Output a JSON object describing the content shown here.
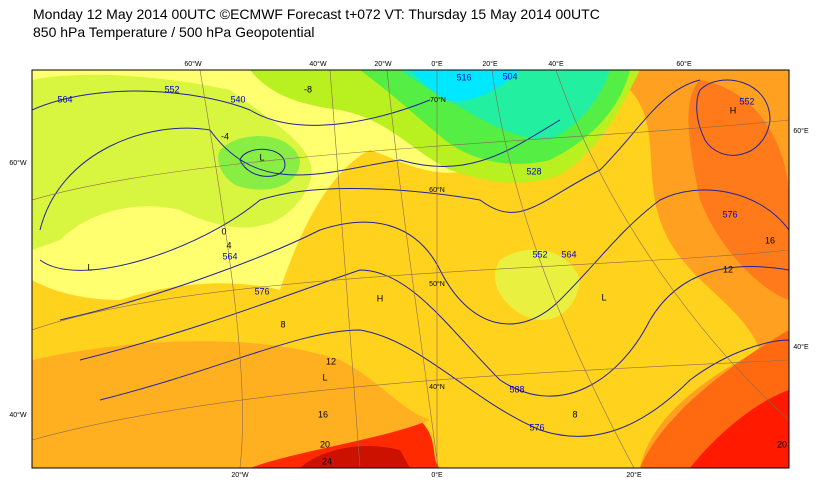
{
  "header": {
    "title": "Monday 12 May 2014 00UTC ©ECMWF Forecast t+072 VT: Thursday 15 May 2014 00UTC",
    "subtitle": "850 hPa Temperature / 500 hPa Geopotential"
  },
  "map": {
    "graticule_labels": [
      "60°W",
      "40°W",
      "20°W",
      "0°E",
      "20°E",
      "40°E",
      "60°E",
      "20°W",
      "0°E",
      "20°E",
      "60°W",
      "40°W",
      "60°E",
      "40°E",
      "70°N",
      "60°N",
      "50°N",
      "40°N"
    ],
    "geopotential_labels": [
      "564",
      "552",
      "540",
      "516",
      "504",
      "528",
      "552",
      "564",
      "576",
      "576",
      "588",
      "576",
      "564",
      "552"
    ],
    "temperature_labels": [
      "-8",
      "-4",
      "0",
      "4",
      "8",
      "12",
      "16",
      "20",
      "24",
      "12",
      "16",
      "20",
      "8"
    ],
    "pressure_centers": [
      "L",
      "L",
      "L",
      "L",
      "H",
      "H"
    ]
  }
}
